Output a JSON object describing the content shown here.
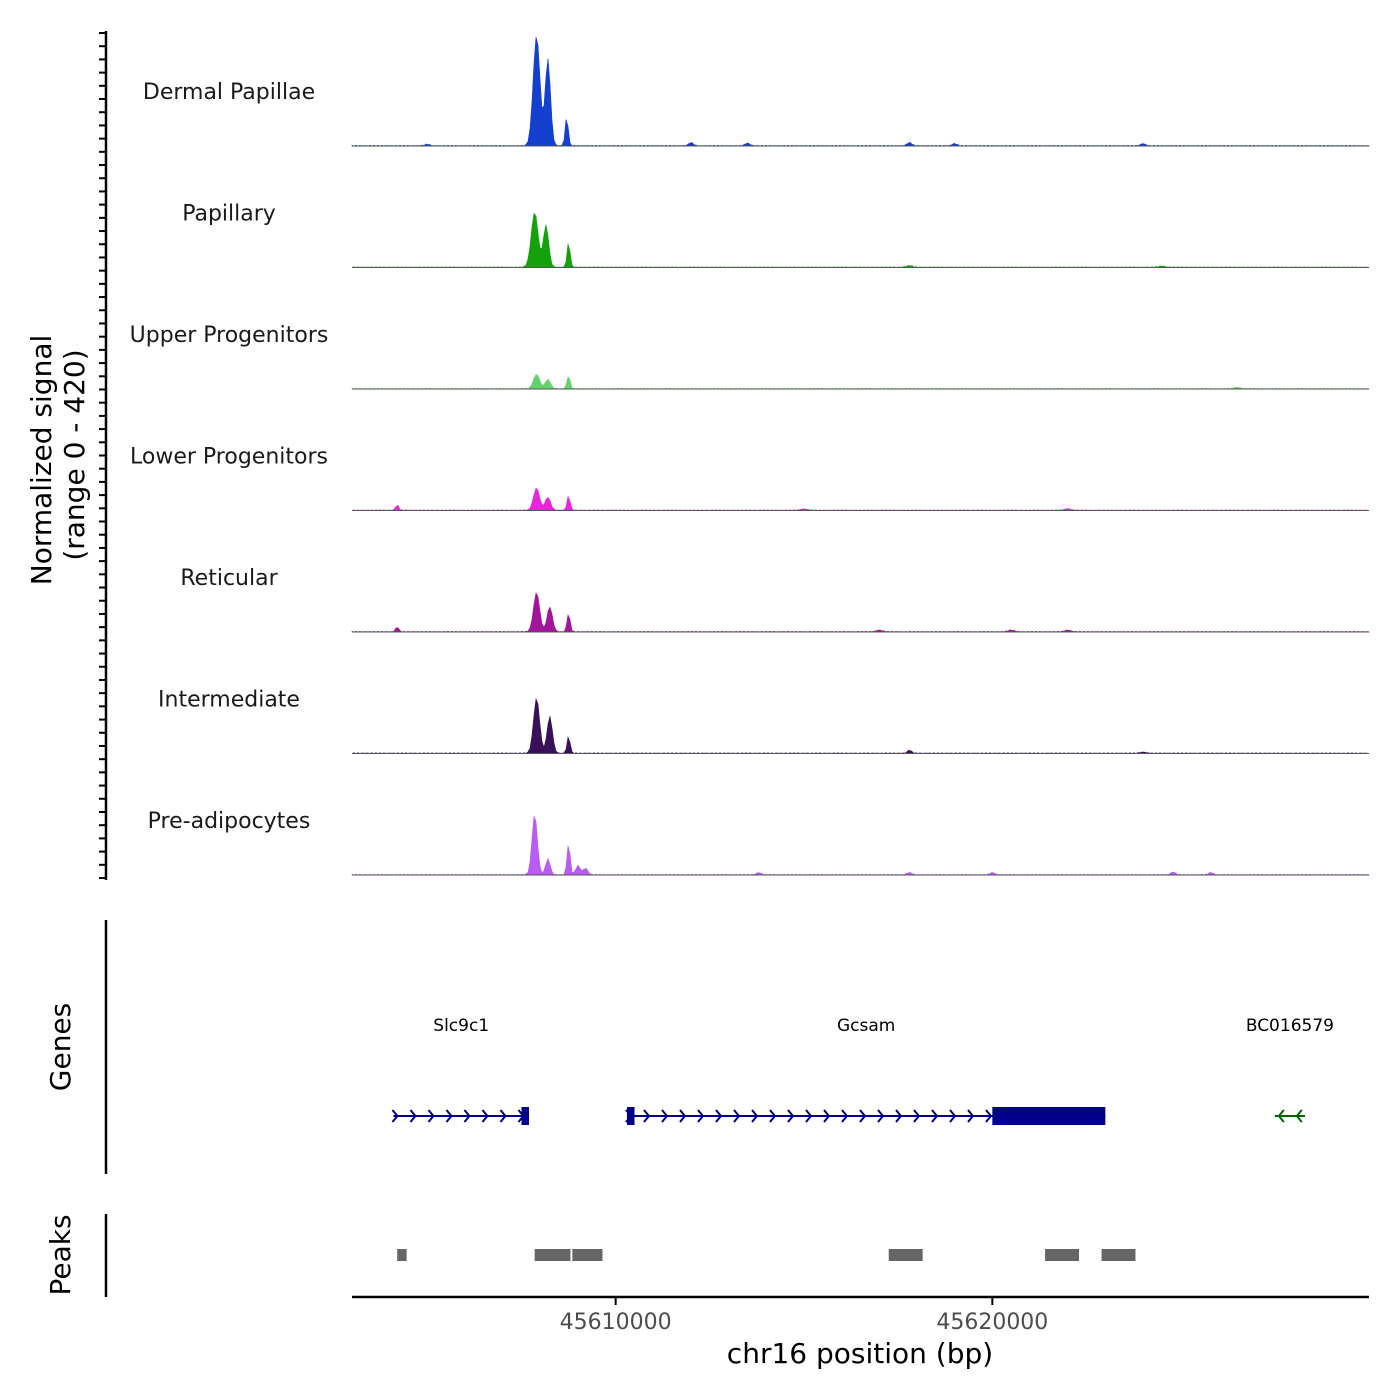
{
  "chart_data": {
    "type": "area",
    "chromosome": "chr16",
    "region": [
      45603000,
      45630000
    ],
    "xlabel": "chr16 position (bp)",
    "ylabel_line1": "Normalized signal",
    "ylabel_line2": "(range 0 - 420)",
    "y_range": [
      0,
      420
    ],
    "x_ticks": [
      {
        "value": 45610000,
        "label": "45610000"
      },
      {
        "value": 45620000,
        "label": "45620000"
      }
    ],
    "coverage_tracks": [
      {
        "name": "Dermal Papillae",
        "color": "#1440d0",
        "peaks": [
          [
            45607900,
            420,
            90
          ],
          [
            45608200,
            330,
            70
          ],
          [
            45608700,
            110,
            40
          ],
          [
            45605000,
            6,
            60
          ],
          [
            45612000,
            12,
            60
          ],
          [
            45613500,
            10,
            60
          ],
          [
            45617800,
            12,
            60
          ],
          [
            45619000,
            8,
            60
          ],
          [
            45624000,
            8,
            60
          ]
        ]
      },
      {
        "name": "Papillary",
        "color": "#15a10b",
        "peaks": [
          [
            45607850,
            210,
            90
          ],
          [
            45608150,
            160,
            70
          ],
          [
            45608750,
            95,
            40
          ],
          [
            45617800,
            6,
            80
          ],
          [
            45624500,
            4,
            80
          ]
        ]
      },
      {
        "name": "Upper Progenitors",
        "color": "#62d46a",
        "peaks": [
          [
            45607900,
            55,
            80
          ],
          [
            45608200,
            35,
            70
          ],
          [
            45608750,
            50,
            40
          ],
          [
            45626500,
            5,
            80
          ]
        ]
      },
      {
        "name": "Lower Progenitors",
        "color": "#e327d9",
        "peaks": [
          [
            45604200,
            20,
            40
          ],
          [
            45607900,
            85,
            80
          ],
          [
            45608200,
            50,
            70
          ],
          [
            45608750,
            55,
            40
          ],
          [
            45615000,
            5,
            80
          ],
          [
            45622000,
            6,
            80
          ]
        ]
      },
      {
        "name": "Reticular",
        "color": "#a3149a",
        "peaks": [
          [
            45604200,
            18,
            40
          ],
          [
            45607900,
            150,
            80
          ],
          [
            45608250,
            95,
            70
          ],
          [
            45608750,
            70,
            40
          ],
          [
            45617000,
            6,
            80
          ],
          [
            45620500,
            6,
            80
          ],
          [
            45622000,
            6,
            80
          ]
        ]
      },
      {
        "name": "Intermediate",
        "color": "#3a0f5a",
        "peaks": [
          [
            45607900,
            210,
            80
          ],
          [
            45608250,
            140,
            70
          ],
          [
            45608750,
            65,
            40
          ],
          [
            45617800,
            12,
            50
          ],
          [
            45624000,
            4,
            80
          ]
        ]
      },
      {
        "name": "Pre-adipocytes",
        "color": "#b85cf2",
        "peaks": [
          [
            45607850,
            230,
            70
          ],
          [
            45608200,
            60,
            60
          ],
          [
            45608750,
            120,
            40
          ],
          [
            45609000,
            35,
            60
          ],
          [
            45609200,
            25,
            60
          ],
          [
            45613800,
            8,
            60
          ],
          [
            45617800,
            8,
            60
          ],
          [
            45620000,
            8,
            60
          ],
          [
            45624800,
            10,
            60
          ],
          [
            45625800,
            8,
            60
          ]
        ]
      }
    ],
    "genes_label": "Genes",
    "genes": [
      {
        "name": "Slc9c1",
        "strand": "+",
        "start": 45604100,
        "end": 45607700,
        "color": "#00008b",
        "exons": [
          [
            45607500,
            45607700
          ]
        ],
        "thick": []
      },
      {
        "name": "Gcsam",
        "strand": "+",
        "start": 45610300,
        "end": 45623000,
        "color": "#00008b",
        "exons": [
          [
            45610300,
            45610500
          ]
        ],
        "thick": [
          [
            45620000,
            45623000
          ]
        ]
      },
      {
        "name": "BC016579",
        "strand": "-",
        "start": 45627500,
        "end": 45628300,
        "color": "#006400",
        "exons": [],
        "thick": []
      }
    ],
    "peaks_label": "Peaks",
    "peak_regions": [
      [
        45604200,
        45604450
      ],
      [
        45607850,
        45608800
      ],
      [
        45608850,
        45609650
      ],
      [
        45617250,
        45618150
      ],
      [
        45621400,
        45622300
      ],
      [
        45622900,
        45623800
      ]
    ]
  }
}
